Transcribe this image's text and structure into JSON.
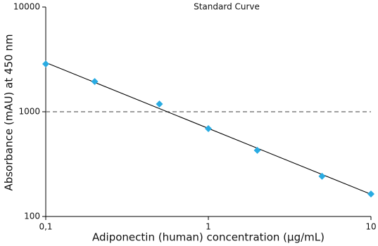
{
  "chart_data": {
    "type": "scatter",
    "title": "Standard Curve",
    "x_label": "Adiponectin (human) concentration (µg/mL)",
    "y_label": "Absorbance (mAU) at 450 nm",
    "x": [
      0.1,
      0.2,
      0.5,
      1,
      2,
      5,
      10
    ],
    "values": [
      2860,
      1945,
      1186,
      690,
      428,
      242,
      164
    ],
    "color": "#29abe2",
    "x_log": true,
    "y_log": true,
    "xlim": [
      0.1,
      10
    ],
    "ylim": [
      100,
      10000
    ],
    "xticks": [
      {
        "value": 0.1,
        "label": "0,1"
      },
      1,
      10
    ],
    "yticks": [
      100,
      1000,
      10000
    ],
    "trend_line": {
      "x": [
        0.1,
        10
      ],
      "values": [
        2950,
        163
      ]
    },
    "reference_line": 1000
  }
}
